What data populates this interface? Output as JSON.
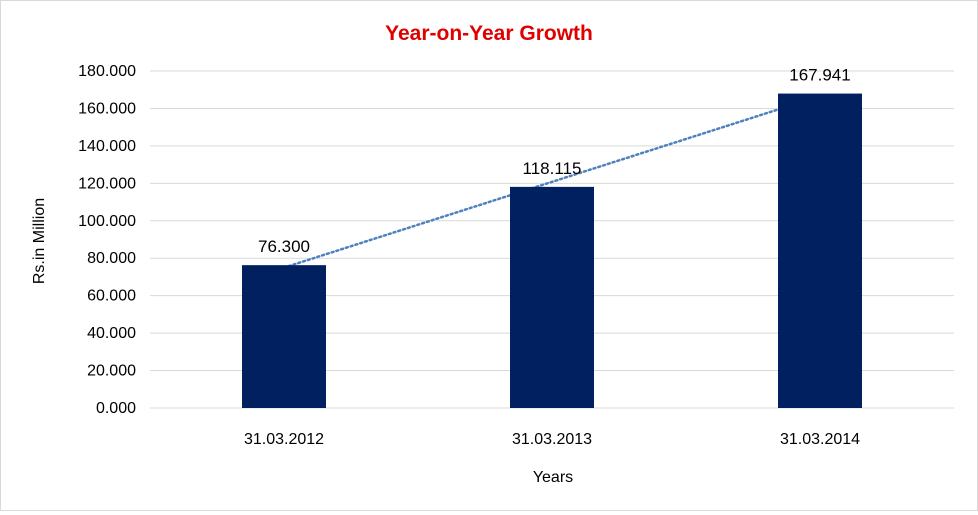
{
  "chart_data": {
    "type": "bar",
    "title": "Year-on-Year Growth",
    "xlabel": "Years",
    "ylabel": "Rs.in Million",
    "categories": [
      "31.03.2012",
      "31.03.2013",
      "31.03.2014"
    ],
    "values": [
      76.3,
      118.115,
      167.941
    ],
    "value_labels": [
      "76.300",
      "118.115",
      "167.941"
    ],
    "ylim": [
      0,
      180
    ],
    "yticks": [
      0,
      20,
      40,
      60,
      80,
      100,
      120,
      140,
      160,
      180
    ],
    "ytick_labels": [
      "0.000",
      "20.000",
      "40.000",
      "60.000",
      "80.000",
      "100.000",
      "120.000",
      "140.000",
      "160.000",
      "180.000"
    ],
    "trendline": {
      "type": "linear",
      "style": "dotted"
    },
    "grid": true,
    "legend": "none",
    "colors": {
      "bar": "#002060",
      "title": "#e00000",
      "trendline": "#4f81bd",
      "grid": "#d9d9d9",
      "text": "#000000"
    }
  }
}
